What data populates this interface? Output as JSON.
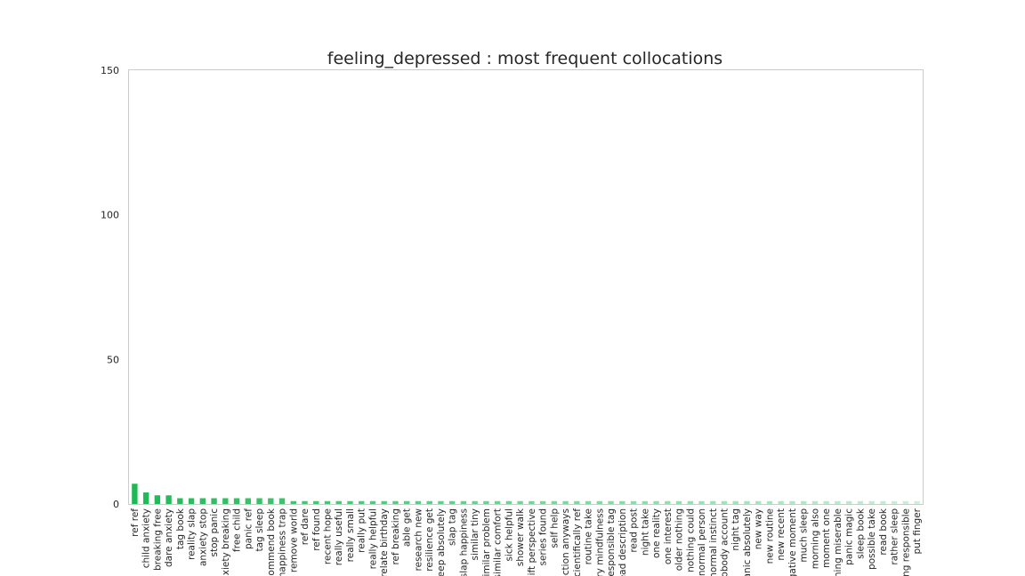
{
  "chart_data": {
    "type": "bar",
    "title": "feeling_depressed : most frequent collocations",
    "xlabel": "",
    "ylabel": "",
    "ylim": [
      0,
      150
    ],
    "yticks": [
      0,
      50,
      100,
      150
    ],
    "grid": false,
    "legend": "none",
    "colors": {
      "start": "#1db954",
      "end": "#cdeedb",
      "frame": "#cccccc"
    },
    "categories": [
      "ref ref",
      "child anxiety",
      "breaking free",
      "dare anxiety",
      "tag book",
      "reality slap",
      "anxiety stop",
      "stop panic",
      "anxiety breaking",
      "free child",
      "panic ref",
      "tag sleep",
      "recommend book",
      "happiness trap",
      "remove world",
      "ref dare",
      "ref found",
      "recent hope",
      "really useful",
      "really small",
      "really put",
      "really helpful",
      "relate birthday",
      "ref breaking",
      "able get",
      "research new",
      "resilience get",
      "sleep absolutely",
      "slap tag",
      "slap happiness",
      "similar tiny",
      "similar problem",
      "similar comfort",
      "sick helpful",
      "shower walk",
      "shift perspective",
      "series found",
      "self help",
      "connection anyways",
      "scientifically ref",
      "routine take",
      "try mindfulness",
      "responsible tag",
      "read description",
      "read post",
      "night take",
      "one reality",
      "one interest",
      "older nothing",
      "nothing could",
      "normal person",
      "normal instinct",
      "nobody account",
      "night tag",
      "panic absolutely",
      "new way",
      "new routine",
      "new recent",
      "negative moment",
      "much sleep",
      "morning also",
      "moment one",
      "morning miserable",
      "panic magic",
      "sleep book",
      "possible take",
      "read book",
      "rather sleep",
      "feeling responsible",
      "put finger"
    ],
    "values": [
      7,
      4,
      3,
      3,
      2,
      2,
      2,
      2,
      2,
      2,
      2,
      2,
      2,
      2,
      1,
      1,
      1,
      1,
      1,
      1,
      1,
      1,
      1,
      1,
      1,
      1,
      1,
      1,
      1,
      1,
      1,
      1,
      1,
      1,
      1,
      1,
      1,
      1,
      1,
      1,
      1,
      1,
      1,
      1,
      1,
      1,
      1,
      1,
      1,
      1,
      1,
      1,
      1,
      1,
      1,
      1,
      1,
      1,
      1,
      1,
      1,
      1,
      1,
      1,
      1,
      1,
      1,
      1,
      1,
      1
    ]
  }
}
